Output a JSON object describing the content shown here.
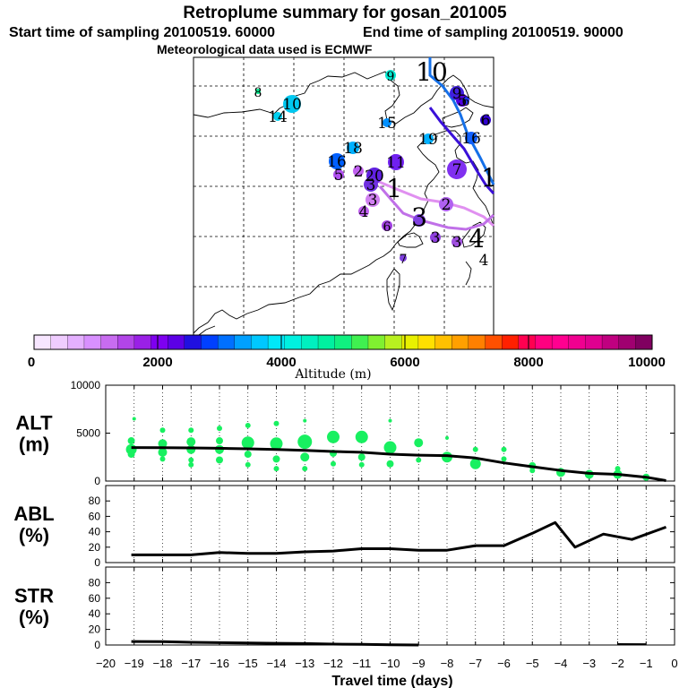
{
  "title": "Retroplume summary for gosan_201005",
  "start_text": "Start time of sampling 20100519. 60000",
  "end_text": "End time of sampling 20100519. 90000",
  "met_text": "Meteorological data used is ECMWF",
  "colorbar": {
    "ticks": [
      "0",
      "2000",
      "4000",
      "6000",
      "8000",
      "10000"
    ],
    "label": "Altitude (m)",
    "colors": [
      "#f7e6ff",
      "#efccff",
      "#e4b0ff",
      "#d890ff",
      "#c86cf0",
      "#b245e8",
      "#9a20e6",
      "#7e00f0",
      "#5c00e6",
      "#2010e0",
      "#0040ff",
      "#0070ff",
      "#00a0ff",
      "#00c8ff",
      "#00e8f8",
      "#00f0e0",
      "#00f0c0",
      "#00f0a0",
      "#10f080",
      "#40f050",
      "#80f030",
      "#b8f020",
      "#e8f000",
      "#ffe000",
      "#ffc000",
      "#ffa000",
      "#ff8000",
      "#ff5000",
      "#ff2000",
      "#ff0050",
      "#ff0080",
      "#ff0090",
      "#f00090",
      "#e00090",
      "#c00080",
      "#a00070",
      "#800060"
    ]
  },
  "map": {
    "labels": [
      {
        "text": "8",
        "color": "#00f090",
        "size": "small"
      },
      {
        "text": "10",
        "color": "#00c8f0",
        "size": "med"
      },
      {
        "text": "14",
        "color": "#00d0f0",
        "size": "med"
      },
      {
        "text": "9",
        "color": "#00e8d0",
        "size": "small"
      },
      {
        "text": "10",
        "color": "#3060ff",
        "size": "big"
      },
      {
        "text": "9",
        "color": "#4020e0",
        "size": "med"
      },
      {
        "text": "6",
        "color": "#3000d0",
        "size": "med"
      },
      {
        "text": "5",
        "color": "#5000e0",
        "size": "med"
      },
      {
        "text": "6",
        "color": "#2030ff",
        "size": "small"
      },
      {
        "text": "15",
        "color": "#0090ff",
        "size": "med"
      },
      {
        "text": "19",
        "color": "#00b0ff",
        "size": "med"
      },
      {
        "text": "16",
        "color": "#1060ff",
        "size": "med"
      },
      {
        "text": "18",
        "color": "#00b0ff",
        "size": "med"
      },
      {
        "text": "16",
        "color": "#0060ff",
        "size": "med"
      },
      {
        "text": "11",
        "color": "#7020f0",
        "size": "med"
      },
      {
        "text": "7",
        "color": "#8030f0",
        "size": "med"
      },
      {
        "text": "5",
        "color": "#b050f0",
        "size": "med"
      },
      {
        "text": "2",
        "color": "#c060f0",
        "size": "med"
      },
      {
        "text": "20",
        "color": "#6020e0",
        "size": "med"
      },
      {
        "text": "3",
        "color": "#7030e0",
        "size": "med"
      },
      {
        "text": "1",
        "color": "#e0a0f8",
        "size": "big"
      },
      {
        "text": "3",
        "color": "#d080f0",
        "size": "med"
      },
      {
        "text": "4",
        "color": "#c060f0",
        "size": "med"
      },
      {
        "text": "3",
        "color": "#8040e0",
        "size": "big"
      },
      {
        "text": "2",
        "color": "#b060f0",
        "size": "med"
      },
      {
        "text": "6",
        "color": "#a040e0",
        "size": "small"
      },
      {
        "text": "3",
        "color": "#9040e0",
        "size": "med"
      },
      {
        "text": "3",
        "color": "#a050e0",
        "size": "med"
      },
      {
        "text": "4",
        "color": "#b060f0",
        "size": "big"
      },
      {
        "text": "4",
        "color": "#d090f0",
        "size": "med"
      },
      {
        "text": "7",
        "color": "#8040e0",
        "size": "small"
      },
      {
        "text": "1",
        "color": "#c080f0",
        "size": "big"
      }
    ]
  },
  "chart_data": [
    {
      "type": "scatter",
      "title": "ALT",
      "ylabel": "ALT (m)",
      "panel_label": "ALT",
      "panel_unit": "(m)",
      "ylim": [
        0,
        10000
      ],
      "yticks": [
        "0",
        "5000",
        "10000"
      ],
      "x": [
        -19.1,
        -18.0,
        -17.0,
        -16.0,
        -15.0,
        -14.0,
        -13.0,
        -12.0,
        -11.0,
        -10.0,
        -9.0,
        -8.0,
        -7.0,
        -6.0,
        -5.0,
        -4.0,
        -3.0,
        -2.0,
        -1.0,
        -0.3
      ],
      "line_values": [
        3500,
        3480,
        3460,
        3420,
        3360,
        3300,
        3200,
        3080,
        3000,
        2800,
        2700,
        2650,
        2400,
        1900,
        1500,
        1100,
        800,
        700,
        400,
        50
      ],
      "scatter": [
        {
          "x": -19.0,
          "y": 6500,
          "r": 2
        },
        {
          "x": -19.1,
          "y": 4200,
          "r": 4
        },
        {
          "x": -19.1,
          "y": 3300,
          "r": 6
        },
        {
          "x": -19.1,
          "y": 2800,
          "r": 4
        },
        {
          "x": -18.0,
          "y": 5300,
          "r": 3
        },
        {
          "x": -18.0,
          "y": 3900,
          "r": 5
        },
        {
          "x": -18.0,
          "y": 3000,
          "r": 5
        },
        {
          "x": -18.0,
          "y": 2300,
          "r": 3
        },
        {
          "x": -17.0,
          "y": 5300,
          "r": 3
        },
        {
          "x": -17.0,
          "y": 4100,
          "r": 5
        },
        {
          "x": -17.0,
          "y": 3300,
          "r": 5
        },
        {
          "x": -17.0,
          "y": 2200,
          "r": 3
        },
        {
          "x": -17.0,
          "y": 1700,
          "r": 3
        },
        {
          "x": -16.0,
          "y": 5500,
          "r": 3
        },
        {
          "x": -16.0,
          "y": 4200,
          "r": 4
        },
        {
          "x": -16.0,
          "y": 3300,
          "r": 5
        },
        {
          "x": -16.0,
          "y": 2200,
          "r": 4
        },
        {
          "x": -15.0,
          "y": 5800,
          "r": 3
        },
        {
          "x": -15.0,
          "y": 4000,
          "r": 7
        },
        {
          "x": -15.0,
          "y": 2800,
          "r": 4
        },
        {
          "x": -15.0,
          "y": 1700,
          "r": 3
        },
        {
          "x": -14.0,
          "y": 6000,
          "r": 3
        },
        {
          "x": -14.0,
          "y": 3900,
          "r": 7
        },
        {
          "x": -14.0,
          "y": 2300,
          "r": 4
        },
        {
          "x": -14.0,
          "y": 1300,
          "r": 3
        },
        {
          "x": -13.0,
          "y": 6300,
          "r": 2
        },
        {
          "x": -13.0,
          "y": 4100,
          "r": 8
        },
        {
          "x": -13.0,
          "y": 2500,
          "r": 5
        },
        {
          "x": -13.0,
          "y": 1300,
          "r": 3
        },
        {
          "x": -12.0,
          "y": 4600,
          "r": 7
        },
        {
          "x": -12.0,
          "y": 2900,
          "r": 4
        },
        {
          "x": -12.0,
          "y": 1800,
          "r": 3
        },
        {
          "x": -11.0,
          "y": 4600,
          "r": 7
        },
        {
          "x": -11.0,
          "y": 2500,
          "r": 4
        },
        {
          "x": -11.0,
          "y": 1700,
          "r": 3
        },
        {
          "x": -10.0,
          "y": 6300,
          "r": 2
        },
        {
          "x": -10.0,
          "y": 3500,
          "r": 7
        },
        {
          "x": -10.0,
          "y": 1800,
          "r": 4
        },
        {
          "x": -9.0,
          "y": 4000,
          "r": 5
        },
        {
          "x": -9.0,
          "y": 2200,
          "r": 3
        },
        {
          "x": -8.0,
          "y": 4500,
          "r": 2
        },
        {
          "x": -8.0,
          "y": 2500,
          "r": 6
        },
        {
          "x": -7.0,
          "y": 3300,
          "r": 3
        },
        {
          "x": -7.0,
          "y": 1800,
          "r": 6
        },
        {
          "x": -6.0,
          "y": 3300,
          "r": 3
        },
        {
          "x": -6.0,
          "y": 2300,
          "r": 3
        },
        {
          "x": -5.0,
          "y": 1600,
          "r": 4
        },
        {
          "x": -5.0,
          "y": 1100,
          "r": 3
        },
        {
          "x": -4.0,
          "y": 900,
          "r": 5
        },
        {
          "x": -3.0,
          "y": 700,
          "r": 5
        },
        {
          "x": -2.0,
          "y": 1300,
          "r": 3
        },
        {
          "x": -2.0,
          "y": 700,
          "r": 5
        },
        {
          "x": -1.0,
          "y": 400,
          "r": 4
        }
      ]
    },
    {
      "type": "line",
      "title": "ABL",
      "ylabel": "ABL (%)",
      "panel_label": "ABL",
      "panel_unit": "(%)",
      "ylim": [
        0,
        100
      ],
      "yticks": [
        "0",
        "20",
        "40",
        "60",
        "80"
      ],
      "x": [
        -19.1,
        -18.0,
        -17.0,
        -16.0,
        -15.0,
        -14.0,
        -13.0,
        -12.0,
        -11.0,
        -10.0,
        -9.0,
        -8.0,
        -7.0,
        -6.0,
        -5.0,
        -4.2,
        -3.5,
        -2.5,
        -1.5,
        -0.3
      ],
      "values": [
        10,
        10,
        10,
        13,
        12,
        12,
        14,
        15,
        18,
        18,
        16,
        16,
        22,
        22,
        38,
        52,
        20,
        37,
        30,
        46
      ]
    },
    {
      "type": "line",
      "title": "STR",
      "ylabel": "STR (%)",
      "panel_label": "STR",
      "panel_unit": "(%)",
      "ylim": [
        0,
        100
      ],
      "yticks": [
        "0",
        "20",
        "40",
        "60",
        "80"
      ],
      "x": [
        -19.1,
        -18.0,
        -17.0,
        -16.0,
        -15.0,
        -14.0,
        -13.0,
        -12.0,
        -11.0,
        -10.0,
        -9.0
      ],
      "values": [
        4.5,
        4.2,
        3.5,
        3.0,
        2.5,
        2.2,
        1.8,
        1.2,
        0.8,
        0.4,
        0.0
      ]
    }
  ],
  "xaxis": {
    "label": "Travel time (days)",
    "ticks": [
      "−20",
      "−19",
      "−18",
      "−17",
      "−16",
      "−15",
      "−14",
      "−13",
      "−12",
      "−11",
      "−10",
      "−9",
      "−8",
      "−7",
      "−6",
      "−5",
      "−4",
      "−3",
      "−2",
      "−1",
      "0"
    ]
  }
}
